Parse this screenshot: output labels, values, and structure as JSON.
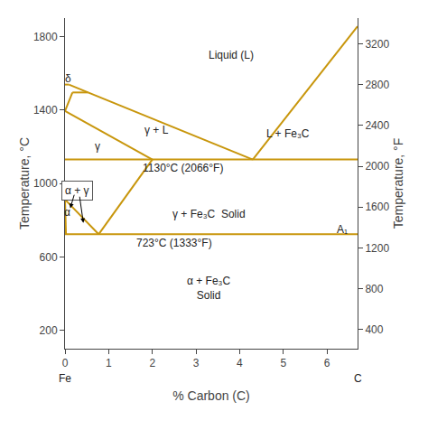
{
  "chart_data": {
    "type": "line",
    "color": "#C8960C",
    "grid": false,
    "xlabel": "% Carbon (C)",
    "ylabel": "Temperature, °C",
    "y2label": "Temperature, °F",
    "xlim": [
      0,
      6.7
    ],
    "ylim": [
      100,
      1900
    ],
    "y2lim": [
      212,
      3452
    ],
    "xticks": [
      0,
      1,
      2,
      3,
      4,
      5,
      6
    ],
    "yticks": [
      200,
      600,
      1000,
      1400,
      1800
    ],
    "y2ticks": [
      400,
      800,
      1200,
      1600,
      2000,
      2400,
      2800,
      3200
    ],
    "series": [
      {
        "x": [
          0,
          0.09
        ],
        "values": [
          1538,
          1538
        ]
      },
      {
        "x": [
          0.09,
          0.53
        ],
        "values": [
          1538,
          1495
        ]
      },
      {
        "x": [
          0.17,
          0.53
        ],
        "values": [
          1495,
          1495
        ]
      },
      {
        "x": [
          0,
          0.17
        ],
        "values": [
          1394,
          1495
        ]
      },
      {
        "x": [
          0.53,
          4.3
        ],
        "values": [
          1495,
          1130
        ]
      },
      {
        "x": [
          4.3,
          6.7
        ],
        "values": [
          1130,
          1855
        ]
      },
      {
        "x": [
          0,
          2.0
        ],
        "values": [
          1394,
          1130
        ]
      },
      {
        "x": [
          0,
          6.7
        ],
        "values": [
          1130,
          1130
        ]
      },
      {
        "x": [
          0.77,
          2.0
        ],
        "values": [
          723,
          1130
        ]
      },
      {
        "x": [
          0,
          6.7
        ],
        "values": [
          723,
          723
        ]
      },
      {
        "x": [
          0,
          0.022
        ],
        "values": [
          912,
          723
        ]
      },
      {
        "x": [
          0,
          0.77
        ],
        "values": [
          912,
          723
        ]
      }
    ],
    "annotations": [
      {
        "text": "Liquid (L)",
        "x": 3.8,
        "y": 1700
      },
      {
        "text": "γ",
        "x": 0.75,
        "y": 1200
      },
      {
        "text": "γ + L",
        "x": 2.1,
        "y": 1290
      },
      {
        "text": "L + Fe₃C",
        "x": 5.1,
        "y": 1270
      },
      {
        "text": "α + γ",
        "x": 0.27,
        "y": 960,
        "boxed": true
      },
      {
        "text": "α",
        "x": 0.055,
        "y": 845,
        "arrow_to": [
          0.01,
          870
        ]
      },
      {
        "text": "δ",
        "x": 0.07,
        "y": 1570,
        "arrow_to": [
          0.04,
          1540
        ]
      },
      {
        "text": "γ + Fe₃C  Solid",
        "x": 3.3,
        "y": 835
      },
      {
        "text": "1130°C (2066°F)",
        "x": 2.7,
        "y": 1082
      },
      {
        "text": "723°C (1333°F)",
        "x": 2.5,
        "y": 675
      },
      {
        "text": "α + Fe₃C\nSolid",
        "x": 3.3,
        "y": 430
      },
      {
        "text": "A₁",
        "x": 6.35,
        "y": 750
      }
    ],
    "arrows": [
      {
        "from": [
          0.22,
          945
        ],
        "to": [
          0.12,
          865
        ]
      },
      {
        "from": [
          0.33,
          935
        ],
        "to": [
          0.42,
          785
        ]
      }
    ],
    "end_labels": [
      {
        "text": "Fe",
        "x": 0.0
      },
      {
        "text": "C",
        "x": 6.7
      }
    ]
  }
}
